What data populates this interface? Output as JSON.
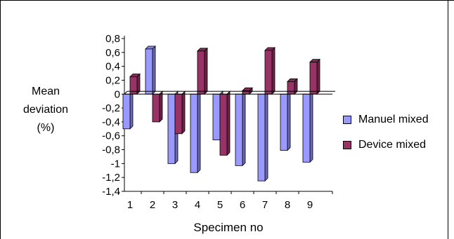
{
  "chart_data": {
    "type": "bar",
    "xlabel": "Specimen no",
    "ylabel": [
      "Mean",
      "deviation",
      "(%)"
    ],
    "categories": [
      "1",
      "2",
      "3",
      "4",
      "5",
      "6",
      "7",
      "8",
      "9"
    ],
    "ylim": [
      -1.4,
      0.8
    ],
    "yticks": [
      "0,8",
      "0,6",
      "0,4",
      "0,2",
      "0",
      "-0,2",
      "-0,4",
      "-0,6",
      "-0,8",
      "-1",
      "-1,2",
      "-1,4"
    ],
    "ytick_values": [
      0.8,
      0.6,
      0.4,
      0.2,
      0,
      -0.2,
      -0.4,
      -0.6,
      -0.8,
      -1,
      -1.2,
      -1.4
    ],
    "legend_position": "right",
    "series": [
      {
        "name": "Manuel mixed",
        "color": "#9999ff",
        "values": [
          -0.5,
          0.65,
          -1.0,
          -1.13,
          -0.66,
          -1.03,
          -1.25,
          -0.81,
          -0.98
        ]
      },
      {
        "name": "Device mixed",
        "color": "#993366",
        "values": [
          0.25,
          -0.4,
          -0.57,
          0.62,
          -0.88,
          0.05,
          0.63,
          0.18,
          0.46
        ]
      }
    ]
  }
}
